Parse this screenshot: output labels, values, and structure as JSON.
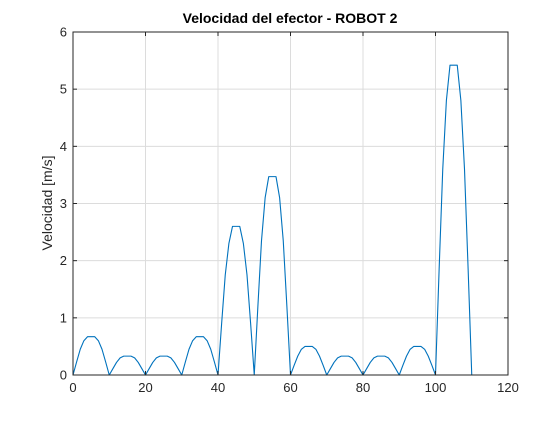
{
  "chart_data": {
    "type": "line",
    "title": "Velocidad del efector - ROBOT 2",
    "xlabel": "",
    "ylabel": "Velocidad [m/s]",
    "xlim": [
      0,
      120
    ],
    "ylim": [
      0,
      6
    ],
    "xticks": [
      0,
      20,
      40,
      60,
      80,
      100,
      120
    ],
    "yticks": [
      0,
      1,
      2,
      3,
      4,
      5,
      6
    ],
    "grid": true,
    "line_color": "#0072bd",
    "series": [
      {
        "x": [
          0,
          1,
          2,
          3,
          4,
          5,
          6,
          7,
          8,
          9,
          10,
          11,
          12,
          13,
          14,
          15,
          16,
          17,
          18,
          19,
          20,
          21,
          22,
          23,
          24,
          25,
          26,
          27,
          28,
          29,
          30,
          31,
          32,
          33,
          34,
          35,
          36,
          37,
          38,
          39,
          40,
          41,
          42,
          43,
          44,
          45,
          46,
          47,
          48,
          49,
          50,
          51,
          52,
          53,
          54,
          55,
          56,
          57,
          58,
          59,
          60,
          61,
          62,
          63,
          64,
          65,
          66,
          67,
          68,
          69,
          70,
          71,
          72,
          73,
          74,
          75,
          76,
          77,
          78,
          79,
          80,
          81,
          82,
          83,
          84,
          85,
          86,
          87,
          88,
          89,
          90,
          91,
          92,
          93,
          94,
          95,
          96,
          97,
          98,
          99,
          100,
          101,
          102,
          103,
          104,
          105,
          106,
          107,
          108,
          109,
          110
        ],
        "y": [
          0,
          0.23,
          0.45,
          0.6,
          0.67,
          0.67,
          0.67,
          0.6,
          0.45,
          0.23,
          0,
          0.11,
          0.22,
          0.3,
          0.33,
          0.33,
          0.33,
          0.3,
          0.22,
          0.11,
          0,
          0.11,
          0.22,
          0.3,
          0.33,
          0.33,
          0.33,
          0.3,
          0.22,
          0.11,
          0,
          0.23,
          0.45,
          0.6,
          0.67,
          0.67,
          0.67,
          0.6,
          0.45,
          0.23,
          0,
          0.9,
          1.75,
          2.3,
          2.6,
          2.6,
          2.6,
          2.3,
          1.75,
          0.9,
          0,
          1.2,
          2.35,
          3.1,
          3.47,
          3.47,
          3.47,
          3.1,
          2.35,
          1.2,
          0,
          0.17,
          0.33,
          0.45,
          0.5,
          0.5,
          0.5,
          0.45,
          0.33,
          0.17,
          0,
          0.11,
          0.22,
          0.3,
          0.33,
          0.33,
          0.33,
          0.3,
          0.22,
          0.11,
          0,
          0.11,
          0.22,
          0.3,
          0.33,
          0.33,
          0.33,
          0.3,
          0.22,
          0.11,
          0,
          0.17,
          0.33,
          0.45,
          0.5,
          0.5,
          0.5,
          0.45,
          0.33,
          0.17,
          0,
          1.85,
          3.6,
          4.8,
          5.42,
          5.42,
          5.42,
          4.8,
          3.6,
          1.85,
          0
        ]
      }
    ]
  }
}
